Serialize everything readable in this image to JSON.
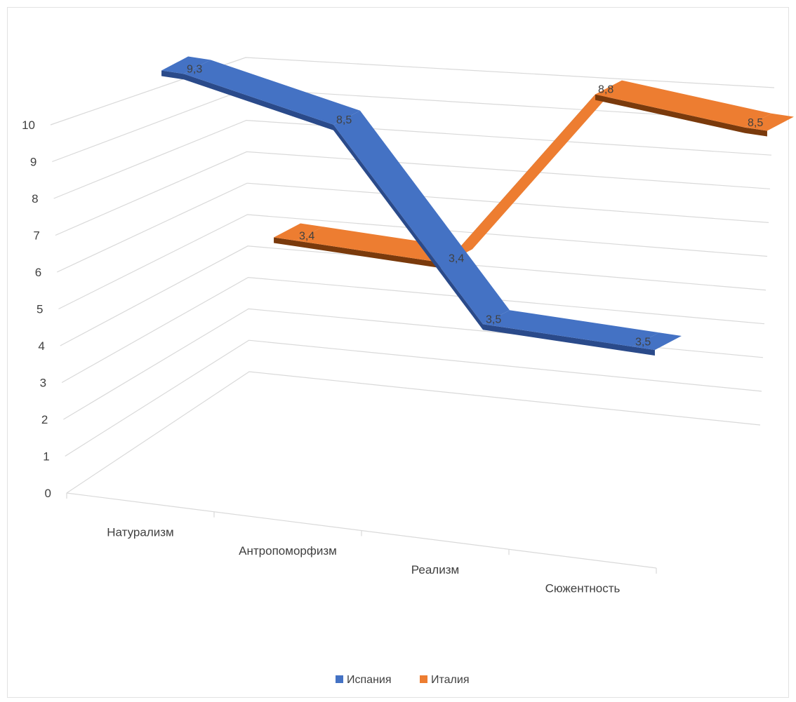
{
  "chart_data": {
    "type": "line",
    "variant": "3d-ribbon",
    "title": "",
    "xlabel": "",
    "ylabel": "",
    "categories": [
      "Натурализм",
      "Антропоморфизм",
      "Реализм",
      "Сюжентность"
    ],
    "series": [
      {
        "name": "Италия",
        "values": [
          3.4,
          3.4,
          8.8,
          8.5
        ],
        "labels": [
          "3,4",
          "3,4",
          "8,8",
          "8,5"
        ],
        "color": "#ed7d31",
        "side_color": "#7a3a0c"
      },
      {
        "name": "Испания",
        "values": [
          9.3,
          8.5,
          3.5,
          3.5
        ],
        "labels": [
          "9,3",
          "8,5",
          "3,5",
          "3,5"
        ],
        "color": "#4472c4",
        "side_color": "#2a4a8a"
      }
    ],
    "y_ticks": [
      "0",
      "1",
      "2",
      "3",
      "4",
      "5",
      "6",
      "7",
      "8",
      "9",
      "10"
    ],
    "ylim": [
      0,
      10
    ],
    "grid": true,
    "legend": "bottom",
    "legend_order": [
      "Испания",
      "Италия"
    ]
  }
}
